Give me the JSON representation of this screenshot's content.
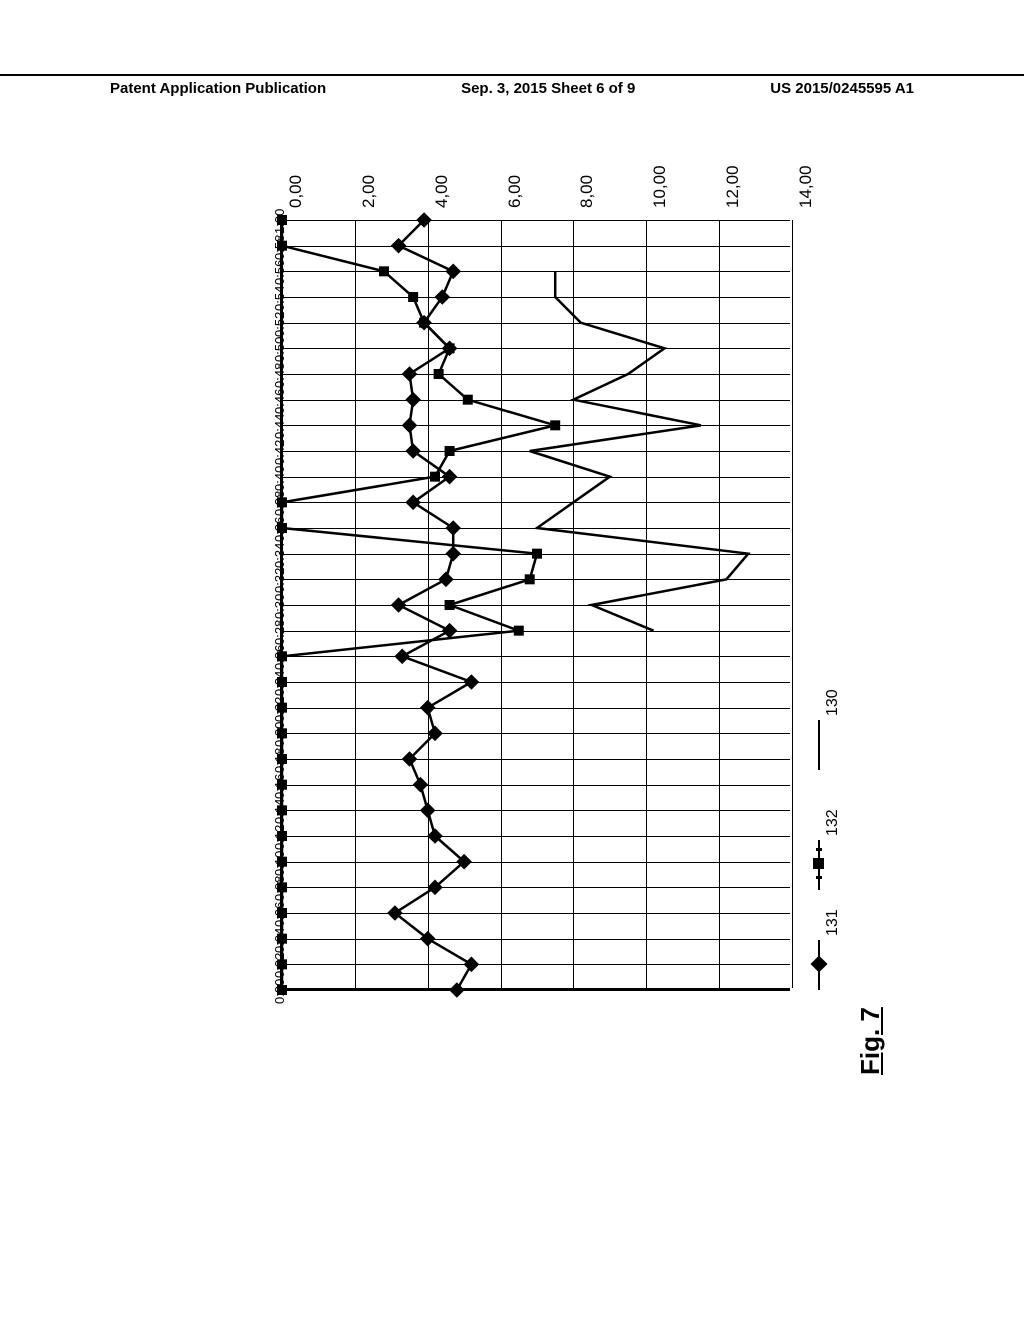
{
  "header": {
    "left": "Patent Application Publication",
    "center": "Sep. 3, 2015  Sheet 6 of 9",
    "right": "US 2015/0245595 A1"
  },
  "fig_label": "Fig. 7",
  "chart": {
    "type": "line",
    "ylim": [
      0,
      14
    ],
    "ytick_step": 2,
    "y_labels": [
      "0,00",
      "2,00",
      "4,00",
      "6,00",
      "8,00",
      "10,00",
      "12,00",
      "14,00"
    ],
    "x_labels": [
      "0:00",
      "0:02",
      "0:04",
      "0:06",
      "0:08",
      "0:10",
      "0:12",
      "0:14",
      "0:16",
      "0:18",
      "0:20",
      "0:22",
      "0:24",
      "0:26",
      "0:28",
      "0:30",
      "0:32",
      "0:34",
      "0:36",
      "0:38",
      "0:40",
      "0:42",
      "0:44",
      "0:46",
      "0:48",
      "0:50",
      "0:52",
      "0:54",
      "0:56",
      "0:58",
      "1:00"
    ],
    "grid_color": "#000000",
    "background_color": "#ffffff",
    "series_130": {
      "label": "130",
      "marker": "none",
      "line_width": 2.5,
      "color": "#000000",
      "values": [
        null,
        null,
        null,
        null,
        null,
        null,
        null,
        null,
        null,
        null,
        null,
        null,
        null,
        null,
        10.2,
        8.5,
        12.2,
        12.8,
        7.0,
        8.0,
        9.0,
        6.8,
        11.5,
        8.0,
        9.5,
        10.5,
        8.2,
        7.5,
        7.5,
        null,
        null
      ]
    },
    "series_131": {
      "label": "131",
      "marker": "diamond",
      "marker_size": 11,
      "line_width": 2.5,
      "color": "#000000",
      "values": [
        4.8,
        5.2,
        4.0,
        3.1,
        4.2,
        5.0,
        4.2,
        4.0,
        3.8,
        3.5,
        4.2,
        4.0,
        5.2,
        3.3,
        4.6,
        3.2,
        4.5,
        4.7,
        4.7,
        3.6,
        4.6,
        3.6,
        3.5,
        3.6,
        3.5,
        4.6,
        3.9,
        4.4,
        4.7,
        3.2,
        3.9
      ]
    },
    "series_132": {
      "label": "132",
      "marker": "square",
      "marker_size": 10,
      "line_width": 2.5,
      "color": "#000000",
      "values": [
        0.0,
        0.0,
        0.0,
        0.0,
        0.0,
        0.0,
        0.0,
        0.0,
        0.0,
        0.0,
        0.0,
        0.0,
        0.0,
        0.0,
        6.5,
        4.6,
        6.8,
        7.0,
        0.0,
        0.0,
        4.2,
        4.6,
        7.5,
        5.1,
        4.3,
        4.6,
        3.9,
        3.6,
        2.8,
        0.0,
        0.0
      ]
    }
  },
  "legend": {
    "items": [
      {
        "label": "131",
        "marker": "diamond"
      },
      {
        "label": "132",
        "marker": "square"
      },
      {
        "label": "130",
        "marker": "none"
      }
    ]
  }
}
